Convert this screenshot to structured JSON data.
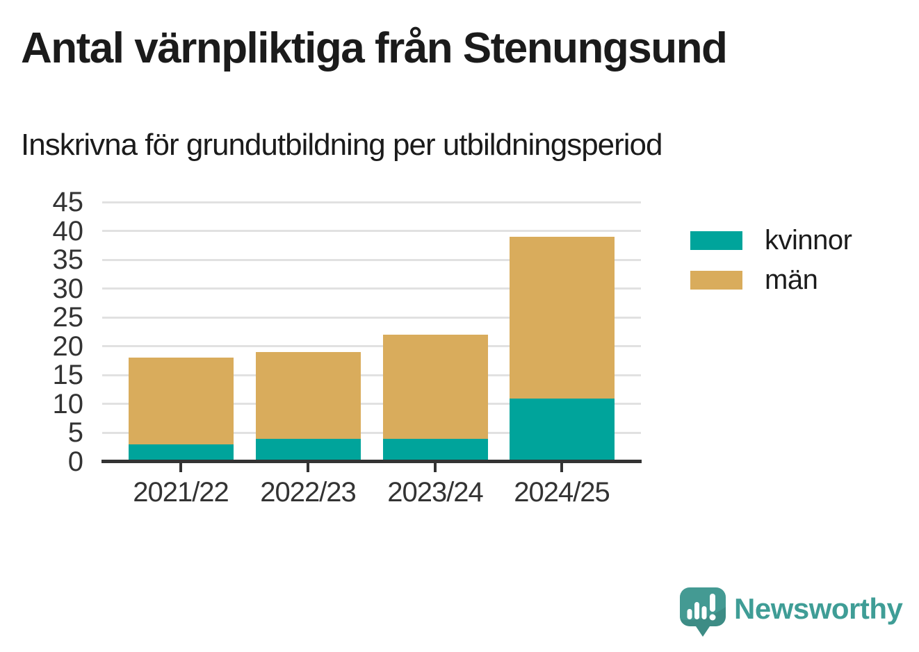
{
  "header": {
    "title": "Antal värnpliktiga från Stenungsund",
    "subtitle": "Inskrivna för grundutbildning per utbildningsperiod"
  },
  "chart_data": {
    "type": "bar",
    "stacked": true,
    "title": "Antal värnpliktiga från Stenungsund",
    "subtitle": "Inskrivna för grundutbildning per utbildningsperiod",
    "categories": [
      "2021/22",
      "2022/23",
      "2023/24",
      "2024/25"
    ],
    "series": [
      {
        "name": "kvinnor",
        "color": "#00A49B",
        "values": [
          3,
          4,
          4,
          11
        ]
      },
      {
        "name": "män",
        "color": "#D9AC5C",
        "values": [
          15,
          15,
          18,
          28
        ]
      }
    ],
    "stack_totals": [
      18,
      19,
      22,
      39
    ],
    "xlabel": "",
    "ylabel": "",
    "ylim": [
      0,
      45
    ],
    "ytick_step": 5,
    "grid": "horizontal",
    "legend_position": "right"
  },
  "branding": {
    "wordmark": "Newsworthy",
    "text_color": "#3F9D96",
    "bubble_color": "#449A93",
    "icon": "speech-bubble-bar-chart-exclamation"
  }
}
